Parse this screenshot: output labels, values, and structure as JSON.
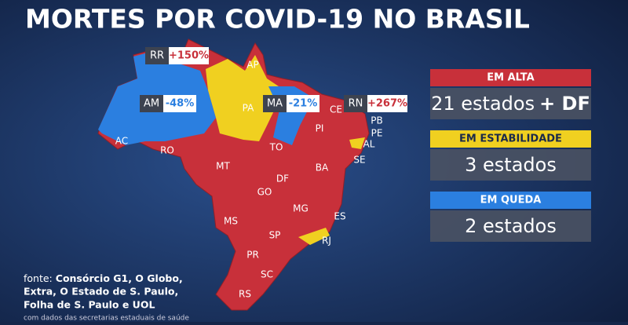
{
  "title": "MORTES POR COVID-19 NO BRASIL",
  "map_labels": [
    "AP",
    "PA",
    "CE",
    "PB",
    "PE",
    "AL",
    "SE",
    "PI",
    "AC",
    "RO",
    "TO",
    "MT",
    "BA",
    "DF",
    "GO",
    "MG",
    "ES",
    "MS",
    "SP",
    "RJ",
    "PR",
    "SC",
    "RS"
  ],
  "callouts": [
    {
      "state": "RR",
      "change": "+150%"
    },
    {
      "state": "AM",
      "change": "-48%"
    },
    {
      "state": "MA",
      "change": "-21%"
    },
    {
      "state": "RN",
      "change": "+267%"
    }
  ],
  "legend": [
    {
      "heading": "EM ALTA",
      "count": "21 estados",
      "extra": "+ DF"
    },
    {
      "heading": "EM ESTABILIDADE",
      "count": "3 estados"
    },
    {
      "heading": "EM QUEDA",
      "count": "2 estados"
    }
  ],
  "source": {
    "label": "fonte:",
    "lines": [
      "Consórcio G1, O Globo,",
      "Extra, O Estado de S. Paulo,",
      "Folha de S. Paulo e UOL"
    ],
    "note": "com dados das secretarias estaduais de saúde"
  }
}
